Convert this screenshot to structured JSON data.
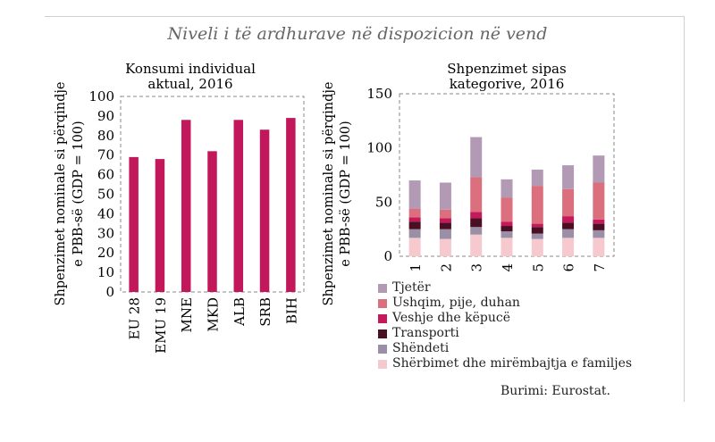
{
  "main_title": "Niveli i të ardhurave në dispozicion në vend",
  "source": "Burimi: Eurostat.",
  "chart_data": [
    {
      "type": "bar",
      "title": "Konsumi individual aktual, 2016",
      "title_lines": [
        "Konsumi individual",
        "aktual, 2016"
      ],
      "ylabel_lines": [
        "Shpenzimet nominale si përqindje",
        "e PBB-së (GDP = 100)"
      ],
      "categories": [
        "EU 28",
        "EMU 19",
        "MNE",
        "MKD",
        "ALB",
        "SRB",
        "BIH"
      ],
      "values": [
        69,
        68,
        88,
        72,
        88,
        83,
        89
      ],
      "ylim": [
        0,
        100
      ],
      "yticks": [
        "0",
        "10",
        "20",
        "30",
        "40",
        "50",
        "60",
        "70",
        "80",
        "90",
        "100"
      ],
      "color": "#c2185b"
    },
    {
      "type": "bar",
      "stacked": true,
      "title": "Shpenzimet sipas kategorive, 2016",
      "title_lines": [
        "Shpenzimet sipas",
        "kategorive, 2016"
      ],
      "ylabel_lines": [
        "Shpenzimet nominale si përqindje",
        "e PBB-së (GDP = 100)"
      ],
      "categories": [
        "1",
        "2",
        "3",
        "4",
        "5",
        "6",
        "7"
      ],
      "ylim": [
        0,
        150
      ],
      "yticks": [
        "0",
        "50",
        "100",
        "150"
      ],
      "legend_position": "bottom",
      "series": [
        {
          "name": "Shërbimet dhe mirëmbajtja e familjes",
          "color": "#f6c9cf",
          "values": [
            17,
            16,
            20,
            17,
            16,
            17,
            17
          ]
        },
        {
          "name": "Shëndeti",
          "color": "#9a8fa6",
          "values": [
            8,
            9,
            7,
            6,
            5,
            8,
            7
          ]
        },
        {
          "name": "Transporti",
          "color": "#4a0f22",
          "values": [
            7,
            6,
            8,
            5,
            6,
            6,
            6
          ]
        },
        {
          "name": "Veshje dhe këpucë",
          "color": "#c41a5c",
          "values": [
            4,
            4,
            6,
            4,
            3,
            6,
            4
          ]
        },
        {
          "name": "Ushqim, pije, duhan",
          "color": "#dc6f7d",
          "values": [
            8,
            8,
            32,
            22,
            35,
            25,
            34
          ]
        },
        {
          "name": "Tjetër",
          "color": "#b39ab4",
          "values": [
            26,
            25,
            37,
            17,
            15,
            22,
            25
          ]
        }
      ]
    }
  ]
}
